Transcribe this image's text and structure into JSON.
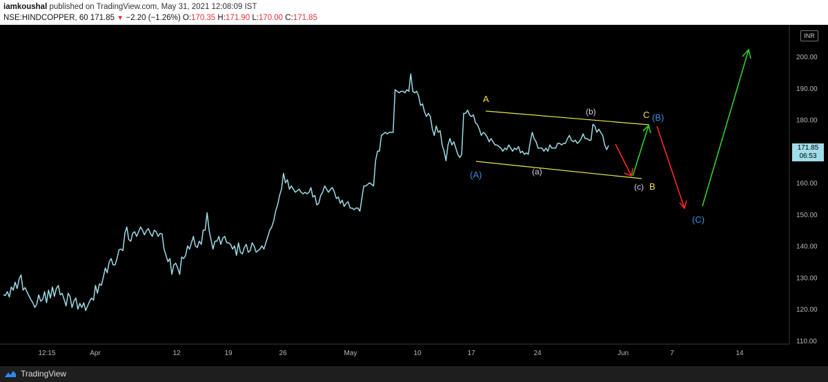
{
  "header": {
    "author": "iamkoushal",
    "published": "published on TradingView.com, May 31, 2021 12:08:09 IST",
    "symbol": "NSE:HINDCOPPER, 60",
    "last": "171.85",
    "change_arrow": "▼",
    "change": "−2.20 (−1.26%)",
    "o_label": "O:",
    "o_value": "170.35",
    "h_label": "H:",
    "h_value": "171.90",
    "l_label": "L:",
    "l_value": "170.00",
    "c_label": "C:",
    "c_value": "171.85"
  },
  "currency_badge": "INR",
  "price_tag": {
    "price": "171.85",
    "timer": "06:53"
  },
  "footer": {
    "brand": "TradingView",
    "logo_icon": "tradingview-logo-icon"
  },
  "colors": {
    "line": "#9fdde9",
    "channel": "#e8e84a",
    "green_arrow": "#2fd12f",
    "red_arrow": "#ff2a2a",
    "blue_label": "#3f8fe0",
    "yellow_label": "#f5e04a",
    "pink_label": "#e0c9f0"
  },
  "chart_data": {
    "type": "line",
    "title": "",
    "ylim": [
      108,
      205
    ],
    "y_ticks": [
      110,
      120,
      130,
      140,
      150,
      160,
      170,
      180,
      190,
      200
    ],
    "y_tick_labels": [
      "110.00",
      "120.00",
      "130.00",
      "140.00",
      "150.00",
      "160.00",
      "170.00",
      "180.00",
      "190.00",
      "200.00"
    ],
    "x_ticks": [
      "12:15",
      "Apr",
      "12",
      "19",
      "26",
      "May",
      "10",
      "17",
      "24",
      "Jun",
      "7",
      "14"
    ],
    "series": [
      {
        "values": [
          124.5,
          124.3,
          125.5,
          123.8,
          127,
          126,
          128.5,
          126.5,
          129.5,
          130.8,
          126,
          126.8,
          125.5,
          124.2,
          123,
          122,
          120.5,
          121.5,
          124.5,
          122.5,
          123,
          125.5,
          122,
          126,
          123.5,
          127,
          124,
          126.5,
          127.5,
          124.5,
          125,
          123,
          121,
          125,
          124,
          120.5,
          122.5,
          123.5,
          120,
          121.8,
          120.5,
          122,
          119.5,
          121,
          122.5,
          123.5,
          122.8,
          127.5,
          125,
          128,
          127.5,
          130,
          133,
          131.5,
          135,
          136,
          134,
          134,
          136,
          138.8,
          139,
          138.5,
          144,
          146,
          142,
          141.5,
          144,
          144.5,
          143,
          144.5,
          146,
          145,
          143.5,
          144.8,
          145.5,
          144,
          143,
          145,
          144.5,
          143,
          144,
          143.8,
          139,
          137,
          135,
          136,
          131,
          134,
          134.5,
          133,
          131,
          136.5,
          136,
          137,
          140,
          139,
          141,
          143,
          140,
          139.5,
          141.5,
          140.5,
          145,
          145,
          150.5,
          145,
          142,
          139,
          141.5,
          141.5,
          143,
          140.5,
          142.5,
          143,
          141,
          141,
          140.5,
          139,
          140,
          137,
          141,
          138,
          137.5,
          139.5,
          140.5,
          138,
          138.5,
          141,
          140,
          138,
          138.5,
          139,
          140,
          139,
          141,
          143,
          145,
          146,
          148,
          151,
          153,
          156,
          158,
          163,
          160,
          161,
          158,
          159,
          158,
          157,
          157.5,
          158,
          157,
          156.5,
          157,
          156.5,
          157,
          158.5,
          155.5,
          156,
          153,
          153.5,
          156,
          157,
          159,
          158,
          157,
          158,
          158.5,
          157,
          155,
          155.5,
          153.5,
          154.5,
          152.5,
          153.5,
          154,
          152,
          152,
          151.5,
          152,
          152,
          151,
          155,
          159,
          159,
          159.5,
          160,
          159.5,
          159,
          167,
          170,
          170,
          175,
          175.5,
          176,
          175.5,
          176,
          176,
          176,
          189.5,
          189,
          188.5,
          189,
          189,
          188.5,
          189.5,
          189,
          194.5,
          189,
          188.5,
          189,
          187.5,
          184.5,
          185,
          182.5,
          181,
          182,
          181,
          177,
          175,
          178,
          176,
          176.5,
          172,
          170,
          167,
          172,
          174,
          172,
          173,
          171,
          169,
          168,
          169,
          182,
          182,
          183,
          181.5,
          181,
          181.5,
          179,
          178.5,
          177,
          175,
          176,
          175.5,
          174.5,
          173,
          174,
          173,
          172,
          172,
          171.5,
          171,
          170,
          171,
          170.5,
          172,
          171,
          170,
          171,
          170.5,
          171.5,
          169.5,
          170,
          169,
          169.5,
          169,
          173,
          176,
          174,
          173,
          171,
          171,
          171,
          170,
          171,
          170,
          172,
          171,
          171,
          171,
          172.5,
          172.5,
          172,
          172.5,
          172.5,
          174,
          175,
          173.5,
          173,
          173.5,
          172.5,
          173,
          174,
          175.5,
          174,
          174,
          173.5,
          173.5,
          178.5,
          178,
          176,
          177,
          176,
          175,
          172,
          170.5,
          171.85
        ]
      }
    ],
    "annotations": [
      "A",
      "(A)",
      "(a)",
      "(b)",
      "(c)",
      "B",
      "C",
      "(B)",
      "(C)"
    ]
  }
}
